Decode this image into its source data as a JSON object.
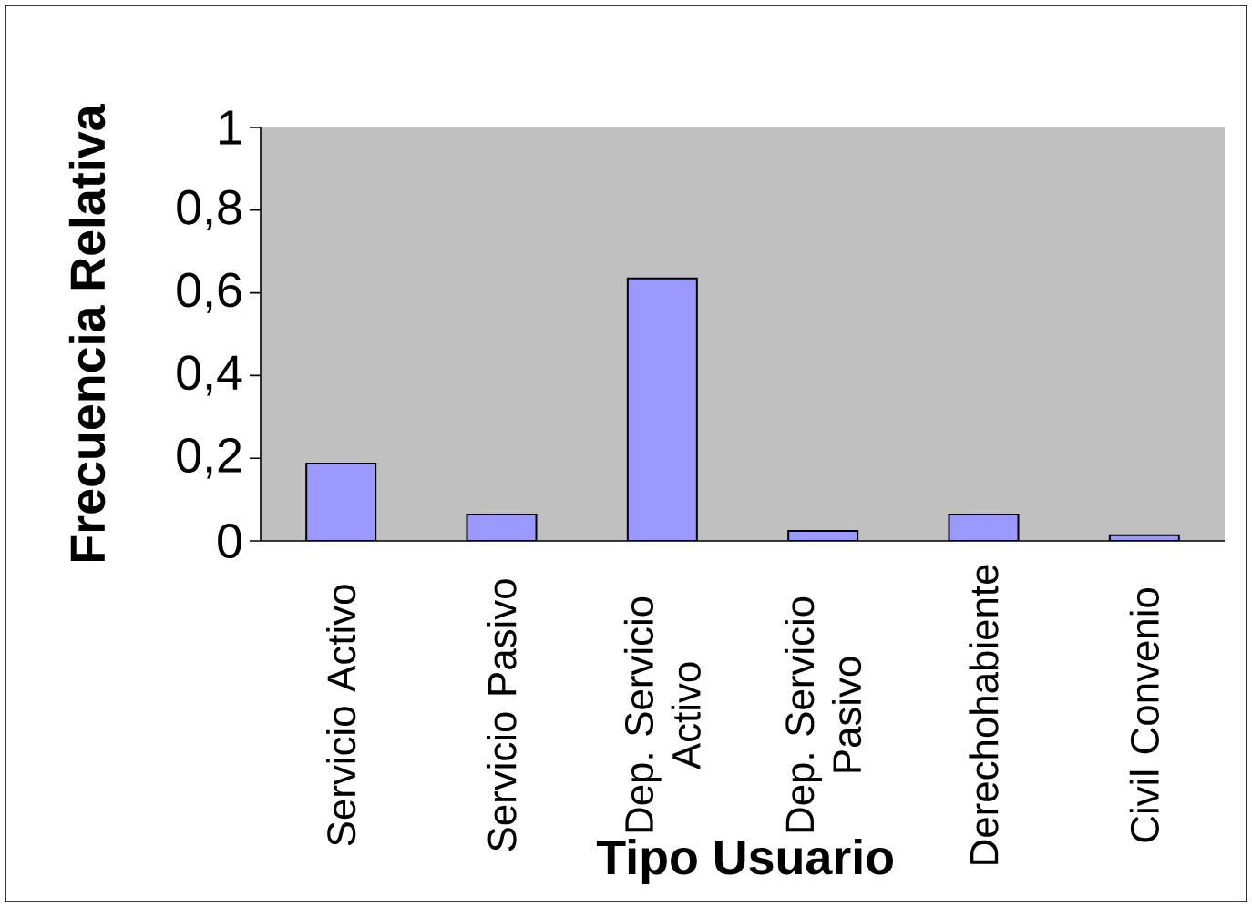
{
  "chart_data": {
    "type": "bar",
    "xlabel": "Tipo Usuario",
    "ylabel": "Frecuencia Relativa",
    "categories": [
      "Servicio Activo",
      "Servicio Pasivo",
      "Dep. Servicio Activo",
      "Dep. Servicio Pasivo",
      "Derechohabiente",
      "Civil Convenio"
    ],
    "values": [
      0.187,
      0.064,
      0.635,
      0.024,
      0.064,
      0.014
    ],
    "color": "#9999ff",
    "ylim": [
      0,
      1
    ],
    "yticks": [
      0,
      {
        "value": 0.2,
        "label": "0,2"
      },
      {
        "value": 0.4,
        "label": "0,4"
      },
      {
        "value": 0.6,
        "label": "0,6"
      },
      {
        "value": 0.8,
        "label": "0,8"
      },
      1
    ],
    "grid": false
  }
}
